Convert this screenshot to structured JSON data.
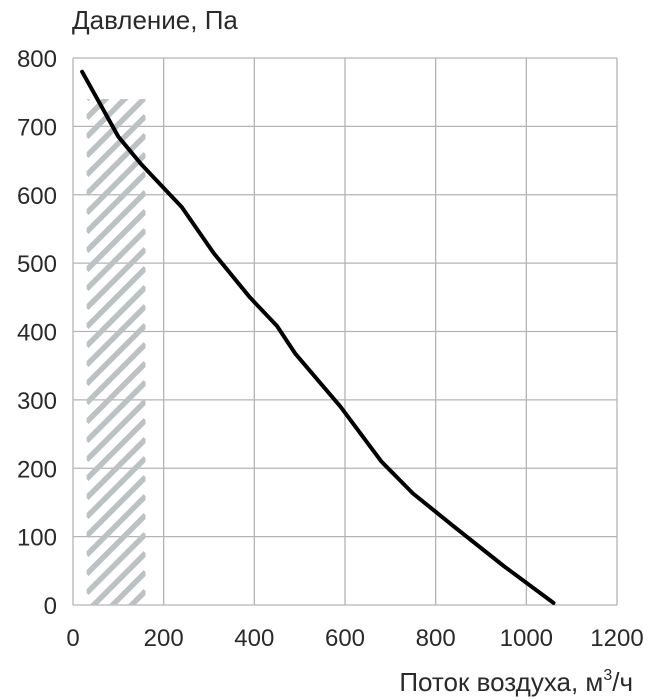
{
  "chart_data": {
    "type": "line",
    "ylabel": "Давление, Па",
    "xlabel_main": "Поток воздуха, м",
    "xlabel_sup": "3",
    "xlabel_tail": "/ч",
    "xlim": [
      0,
      1200
    ],
    "ylim": [
      0,
      800
    ],
    "x_ticks": [
      0,
      200,
      400,
      600,
      800,
      1000,
      1200
    ],
    "y_ticks": [
      0,
      100,
      200,
      300,
      400,
      500,
      600,
      700,
      800
    ],
    "grid": true,
    "hatched_region": {
      "x_from": 30,
      "x_to": 160,
      "y_from": 0,
      "y_to": 740
    },
    "series": [
      {
        "color": "#000000",
        "x": [
          20,
          100,
          150,
          240,
          310,
          390,
          450,
          490,
          590,
          680,
          750,
          840,
          950,
          1060
        ],
        "y": [
          780,
          685,
          645,
          582,
          515,
          450,
          408,
          368,
          290,
          210,
          163,
          115,
          57,
          3
        ]
      }
    ]
  }
}
